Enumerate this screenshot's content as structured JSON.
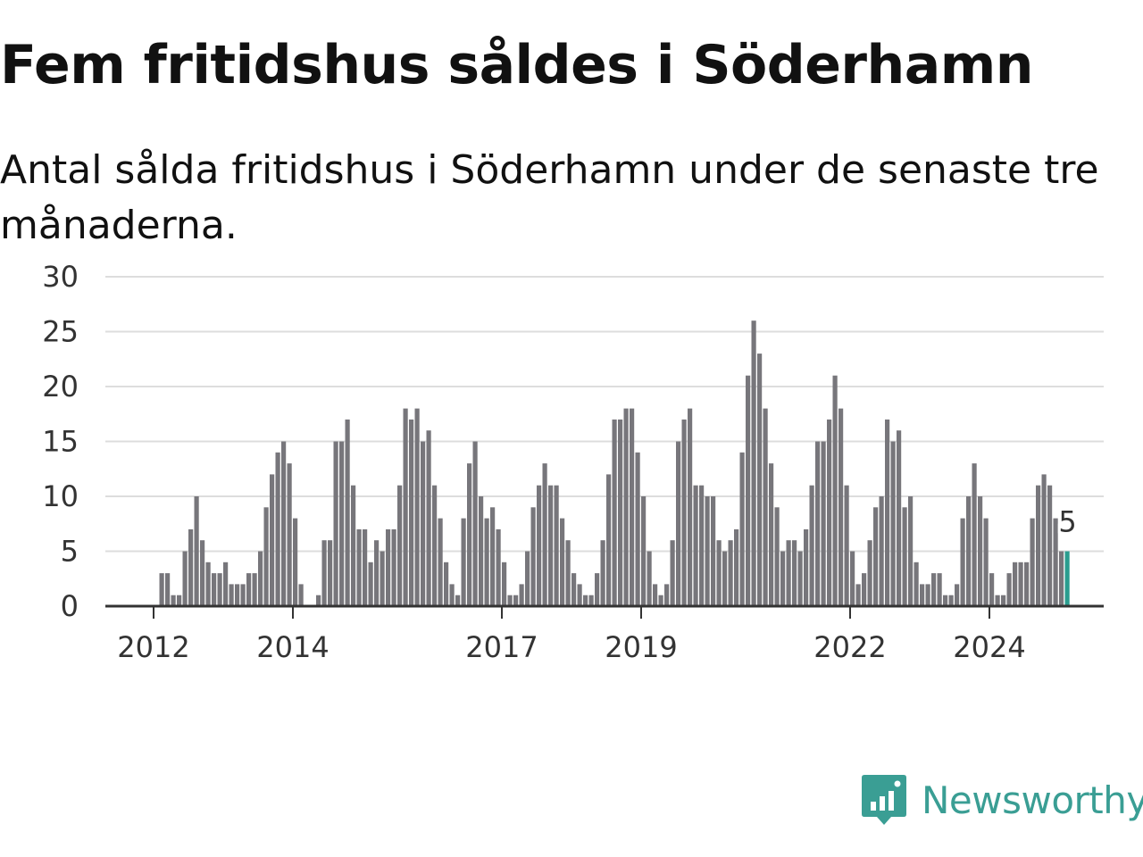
{
  "header": {
    "title": "Fem fritidshus såldes i Söderhamn",
    "subtitle": "Antal sålda fritidshus i Söderhamn under de senaste tre månaderna."
  },
  "brand": {
    "name": "Newsworthy",
    "color": "#3a9e94",
    "logo_icon": "bar-chart-speech-bubble-icon"
  },
  "chart_data": {
    "type": "bar",
    "title": "Fem fritidshus såldes i Söderhamn",
    "subtitle": "Antal sålda fritidshus i Söderhamn under de senaste tre månaderna.",
    "xlabel": "",
    "ylabel": "",
    "ylim": [
      0,
      30
    ],
    "yticks": [
      0,
      5,
      10,
      15,
      20,
      25,
      30
    ],
    "xticks": [
      "2012",
      "2014",
      "2017",
      "2019",
      "2022",
      "2024"
    ],
    "grid": true,
    "bar_color": "#77767b",
    "highlight_color": "#2a9d8f",
    "highlight_label": "5",
    "values": [
      0,
      0,
      0,
      0,
      0,
      0,
      0,
      0,
      0,
      3,
      3,
      1,
      1,
      5,
      7,
      10,
      6,
      4,
      3,
      3,
      4,
      2,
      2,
      2,
      3,
      3,
      5,
      9,
      12,
      14,
      15,
      13,
      8,
      2,
      0,
      0,
      1,
      6,
      6,
      15,
      15,
      17,
      11,
      7,
      7,
      4,
      6,
      5,
      7,
      7,
      11,
      18,
      17,
      18,
      15,
      16,
      11,
      8,
      4,
      2,
      1,
      8,
      13,
      15,
      10,
      8,
      9,
      7,
      4,
      1,
      1,
      2,
      5,
      9,
      11,
      13,
      11,
      11,
      8,
      6,
      3,
      2,
      1,
      1,
      3,
      6,
      12,
      17,
      17,
      18,
      18,
      14,
      10,
      5,
      2,
      1,
      2,
      6,
      15,
      17,
      18,
      11,
      11,
      10,
      10,
      6,
      5,
      6,
      7,
      14,
      21,
      26,
      23,
      18,
      13,
      9,
      5,
      6,
      6,
      5,
      7,
      11,
      15,
      15,
      17,
      21,
      18,
      11,
      5,
      2,
      3,
      6,
      9,
      10,
      17,
      15,
      16,
      9,
      10,
      4,
      2,
      2,
      3,
      3,
      1,
      1,
      2,
      8,
      10,
      13,
      10,
      8,
      3,
      1,
      1,
      3,
      4,
      4,
      4,
      8,
      11,
      12,
      11,
      8,
      5
    ]
  }
}
